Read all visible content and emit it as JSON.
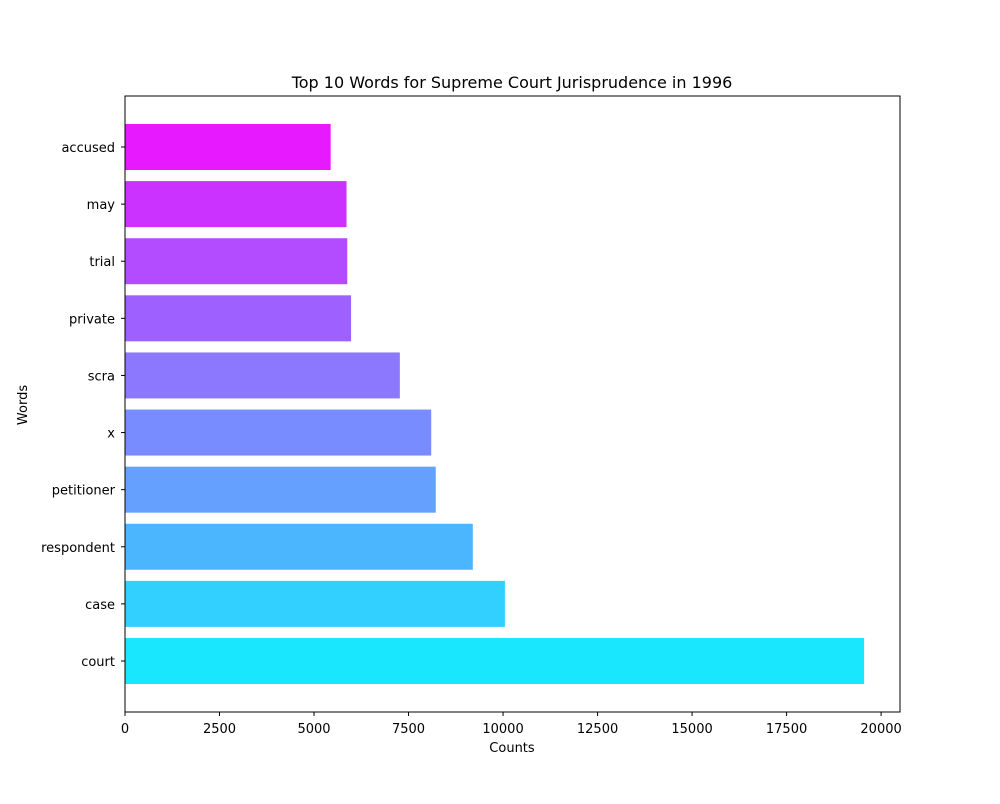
{
  "chart_data": {
    "type": "bar",
    "orientation": "horizontal",
    "title": "Top 10 Words for Supreme Court Jurisprudence in 1996",
    "xlabel": "Counts",
    "ylabel": "Words",
    "categories": [
      "court",
      "case",
      "respondent",
      "petitioner",
      "x",
      "scra",
      "private",
      "trial",
      "may",
      "accused"
    ],
    "values": [
      19550,
      10050,
      9200,
      8220,
      8100,
      7270,
      5980,
      5880,
      5860,
      5440
    ],
    "colors": [
      "#19e7fe",
      "#32d0ff",
      "#4bb6fe",
      "#65a0ff",
      "#788cff",
      "#8c77ff",
      "#9e60ff",
      "#b34bff",
      "#cc32ff",
      "#e619ff"
    ],
    "xlim": [
      0,
      20500
    ],
    "xticks": [
      0,
      2500,
      5000,
      7500,
      10000,
      12500,
      15000,
      17500,
      20000
    ],
    "grid": false,
    "legend": "none"
  }
}
